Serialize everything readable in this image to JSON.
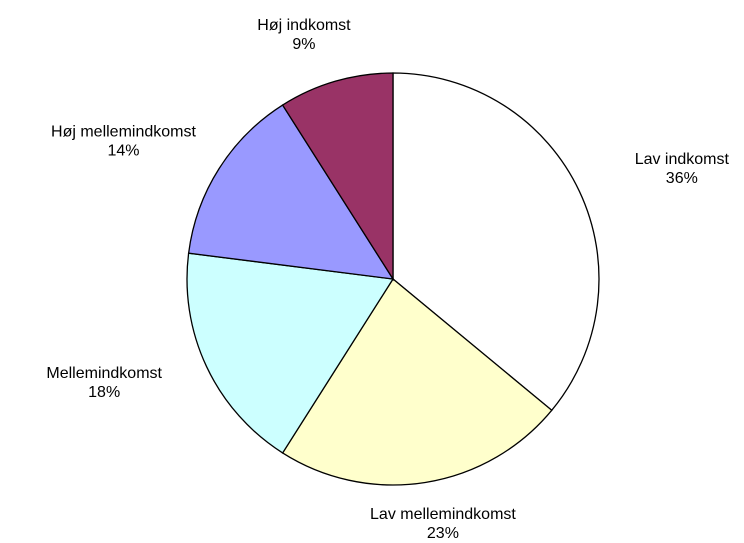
{
  "chart_data": {
    "type": "pie",
    "categories": [
      "Lav indkomst",
      "Lav mellemindkomst",
      "Mellemindkomst",
      "Høj mellemindkomst",
      "Høj indkomst"
    ],
    "values": [
      36,
      23,
      18,
      14,
      9
    ],
    "value_labels": [
      "36%",
      "23%",
      "18%",
      "14%",
      "9%"
    ],
    "colors": [
      "#ffffff",
      "#ffffcc",
      "#ccffff",
      "#9999ff",
      "#993366"
    ]
  }
}
